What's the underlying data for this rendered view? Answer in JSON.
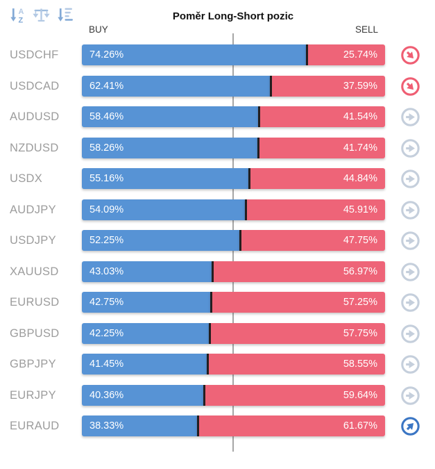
{
  "header": {
    "title": "Poměr Long-Short pozic",
    "buy_label": "BUY",
    "sell_label": "SELL"
  },
  "toolbar": {
    "icons": [
      {
        "name": "sort-alphabetical-icon"
      },
      {
        "name": "balance-scale-icon"
      },
      {
        "name": "sort-amount-icon"
      }
    ]
  },
  "colors": {
    "buy_bar": "#5793d5",
    "sell_bar": "#ee6478",
    "bar_divider": "#241f20",
    "symbol_gray": "#9c9c9c",
    "centerline": "#a6a6a6",
    "trend_red": "#ef5e73",
    "trend_gray": "#c5cfdc",
    "trend_blue": "#3b76c4"
  },
  "chart_data": {
    "type": "bar",
    "orientation": "horizontal-stacked",
    "title": "Poměr Long-Short pozic",
    "value_format": "percent",
    "xlim": [
      0,
      100
    ],
    "center_reference_line": 50,
    "categories": [
      "USDCHF",
      "USDCAD",
      "AUDUSD",
      "NZDUSD",
      "USDX",
      "AUDJPY",
      "USDJPY",
      "XAUUSD",
      "EURUSD",
      "GBPUSD",
      "GBPJPY",
      "EURJPY",
      "EURAUD"
    ],
    "series": [
      {
        "name": "BUY",
        "color": "#5793d5",
        "values": [
          74.26,
          62.41,
          58.46,
          58.26,
          55.16,
          54.09,
          52.25,
          43.03,
          42.75,
          42.25,
          41.45,
          40.36,
          38.33
        ]
      },
      {
        "name": "SELL",
        "color": "#ee6478",
        "values": [
          25.74,
          37.59,
          41.54,
          41.74,
          44.84,
          45.91,
          47.75,
          56.97,
          57.25,
          57.75,
          58.55,
          59.64,
          61.67
        ]
      }
    ]
  },
  "rows": [
    {
      "symbol": "USDCHF",
      "buy": "74.26%",
      "sell": "25.74%",
      "buy_pct": 74.26,
      "trend_color": "red",
      "trend_dir": "down-right"
    },
    {
      "symbol": "USDCAD",
      "buy": "62.41%",
      "sell": "37.59%",
      "buy_pct": 62.41,
      "trend_color": "red",
      "trend_dir": "down-right"
    },
    {
      "symbol": "AUDUSD",
      "buy": "58.46%",
      "sell": "41.54%",
      "buy_pct": 58.46,
      "trend_color": "gray",
      "trend_dir": "right"
    },
    {
      "symbol": "NZDUSD",
      "buy": "58.26%",
      "sell": "41.74%",
      "buy_pct": 58.26,
      "trend_color": "gray",
      "trend_dir": "right"
    },
    {
      "symbol": "USDX",
      "buy": "55.16%",
      "sell": "44.84%",
      "buy_pct": 55.16,
      "trend_color": "gray",
      "trend_dir": "right"
    },
    {
      "symbol": "AUDJPY",
      "buy": "54.09%",
      "sell": "45.91%",
      "buy_pct": 54.09,
      "trend_color": "gray",
      "trend_dir": "right"
    },
    {
      "symbol": "USDJPY",
      "buy": "52.25%",
      "sell": "47.75%",
      "buy_pct": 52.25,
      "trend_color": "gray",
      "trend_dir": "right"
    },
    {
      "symbol": "XAUUSD",
      "buy": "43.03%",
      "sell": "56.97%",
      "buy_pct": 43.03,
      "trend_color": "gray",
      "trend_dir": "right"
    },
    {
      "symbol": "EURUSD",
      "buy": "42.75%",
      "sell": "57.25%",
      "buy_pct": 42.75,
      "trend_color": "gray",
      "trend_dir": "right"
    },
    {
      "symbol": "GBPUSD",
      "buy": "42.25%",
      "sell": "57.75%",
      "buy_pct": 42.25,
      "trend_color": "gray",
      "trend_dir": "right"
    },
    {
      "symbol": "GBPJPY",
      "buy": "41.45%",
      "sell": "58.55%",
      "buy_pct": 41.45,
      "trend_color": "gray",
      "trend_dir": "right"
    },
    {
      "symbol": "EURJPY",
      "buy": "40.36%",
      "sell": "59.64%",
      "buy_pct": 40.36,
      "trend_color": "gray",
      "trend_dir": "right"
    },
    {
      "symbol": "EURAUD",
      "buy": "38.33%",
      "sell": "61.67%",
      "buy_pct": 38.33,
      "trend_color": "blue",
      "trend_dir": "up-right"
    }
  ]
}
